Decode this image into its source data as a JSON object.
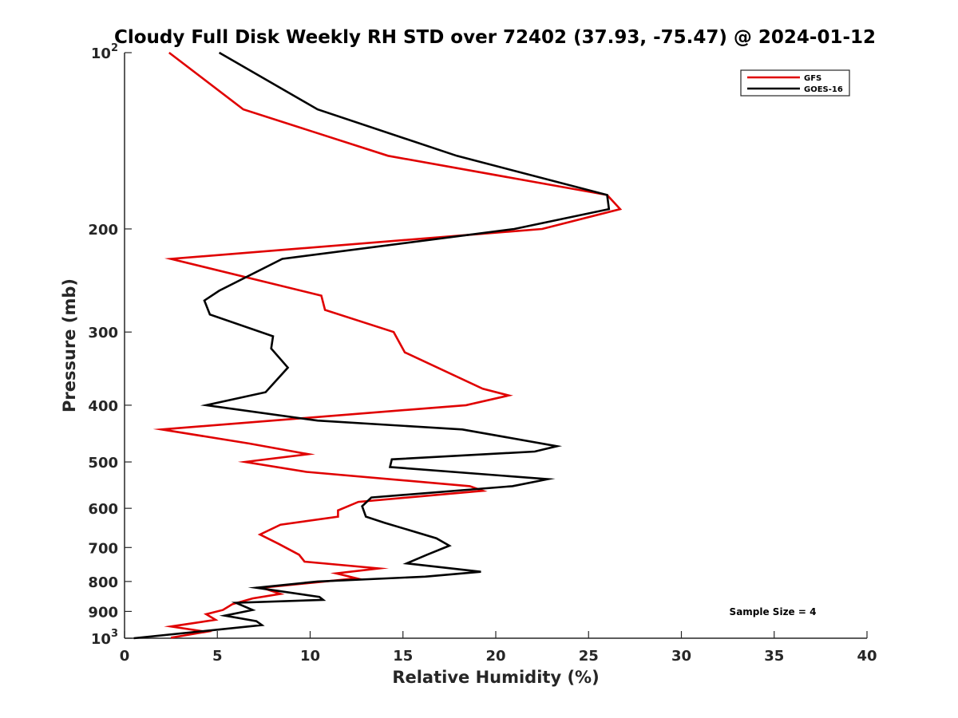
{
  "chart_data": {
    "type": "line",
    "title": "Cloudy Full Disk Weekly RH STD over 72402 (37.93, -75.47) @ 2024-01-12",
    "xlabel": "Relative Humidity (%)",
    "ylabel": "Pressure (mb)",
    "xlim": [
      0,
      40
    ],
    "ylim": [
      100,
      1000
    ],
    "yscale": "log",
    "y_reversed": true,
    "grid": false,
    "legend_position": "top-right",
    "x_ticks": [
      0,
      5,
      10,
      15,
      20,
      25,
      30,
      35,
      40
    ],
    "x_tick_labels": [
      "0",
      "5",
      "10",
      "15",
      "20",
      "25",
      "30",
      "35",
      "40"
    ],
    "y_ticks": [
      100,
      200,
      300,
      400,
      500,
      600,
      700,
      800,
      900,
      1000
    ],
    "y_tick_labels": [
      {
        "base": "10",
        "sup": "2"
      },
      {
        "base": "200",
        "sup": ""
      },
      {
        "base": "300",
        "sup": ""
      },
      {
        "base": "400",
        "sup": ""
      },
      {
        "base": "500",
        "sup": ""
      },
      {
        "base": "600",
        "sup": ""
      },
      {
        "base": "700",
        "sup": ""
      },
      {
        "base": "800",
        "sup": ""
      },
      {
        "base": "900",
        "sup": ""
      },
      {
        "base": "10",
        "sup": "3"
      }
    ],
    "annotation": "Sample Size = 4",
    "series": [
      {
        "name": "GFS",
        "color": "#e00000",
        "points": [
          [
            2.4,
            100
          ],
          [
            6.4,
            125
          ],
          [
            14.2,
            150
          ],
          [
            26.0,
            175
          ],
          [
            26.7,
            185
          ],
          [
            22.5,
            200
          ],
          [
            2.5,
            225
          ],
          [
            10.6,
            260
          ],
          [
            10.8,
            275
          ],
          [
            14.5,
            300
          ],
          [
            15.1,
            325
          ],
          [
            19.3,
            375
          ],
          [
            20.7,
            385
          ],
          [
            18.4,
            400
          ],
          [
            2.0,
            440
          ],
          [
            6.7,
            465
          ],
          [
            9.9,
            485
          ],
          [
            6.5,
            500
          ],
          [
            9.8,
            520
          ],
          [
            18.6,
            550
          ],
          [
            19.3,
            560
          ],
          [
            12.6,
            585
          ],
          [
            11.5,
            605
          ],
          [
            11.5,
            620
          ],
          [
            8.4,
            640
          ],
          [
            7.3,
            665
          ],
          [
            8.3,
            690
          ],
          [
            9.4,
            720
          ],
          [
            9.7,
            740
          ],
          [
            13.7,
            760
          ],
          [
            11.4,
            775
          ],
          [
            12.5,
            790
          ],
          [
            7.4,
            820
          ],
          [
            8.4,
            840
          ],
          [
            6.9,
            855
          ],
          [
            5.8,
            875
          ],
          [
            5.3,
            895
          ],
          [
            4.4,
            910
          ],
          [
            4.9,
            930
          ],
          [
            2.5,
            955
          ],
          [
            4.4,
            975
          ],
          [
            2.5,
            998
          ]
        ]
      },
      {
        "name": "GOES-16",
        "color": "#000000",
        "points": [
          [
            5.1,
            100
          ],
          [
            10.4,
            125
          ],
          [
            17.9,
            150
          ],
          [
            26.0,
            175
          ],
          [
            26.1,
            185
          ],
          [
            21.0,
            200
          ],
          [
            8.5,
            225
          ],
          [
            5.1,
            255
          ],
          [
            4.3,
            265
          ],
          [
            4.6,
            280
          ],
          [
            8.0,
            305
          ],
          [
            7.9,
            320
          ],
          [
            8.8,
            345
          ],
          [
            7.6,
            380
          ],
          [
            4.4,
            400
          ],
          [
            10.4,
            425
          ],
          [
            18.2,
            440
          ],
          [
            23.3,
            470
          ],
          [
            22.1,
            480
          ],
          [
            14.4,
            495
          ],
          [
            14.3,
            510
          ],
          [
            22.8,
            535
          ],
          [
            20.9,
            550
          ],
          [
            13.3,
            575
          ],
          [
            12.8,
            595
          ],
          [
            13.0,
            620
          ],
          [
            14.0,
            635
          ],
          [
            16.8,
            675
          ],
          [
            17.5,
            695
          ],
          [
            16.3,
            720
          ],
          [
            15.2,
            745
          ],
          [
            19.2,
            770
          ],
          [
            16.2,
            785
          ],
          [
            10.4,
            800
          ],
          [
            7.1,
            820
          ],
          [
            10.5,
            850
          ],
          [
            10.7,
            860
          ],
          [
            6.0,
            870
          ],
          [
            6.9,
            895
          ],
          [
            5.4,
            915
          ],
          [
            7.1,
            935
          ],
          [
            7.4,
            950
          ],
          [
            0.5,
            1000
          ]
        ]
      }
    ]
  }
}
